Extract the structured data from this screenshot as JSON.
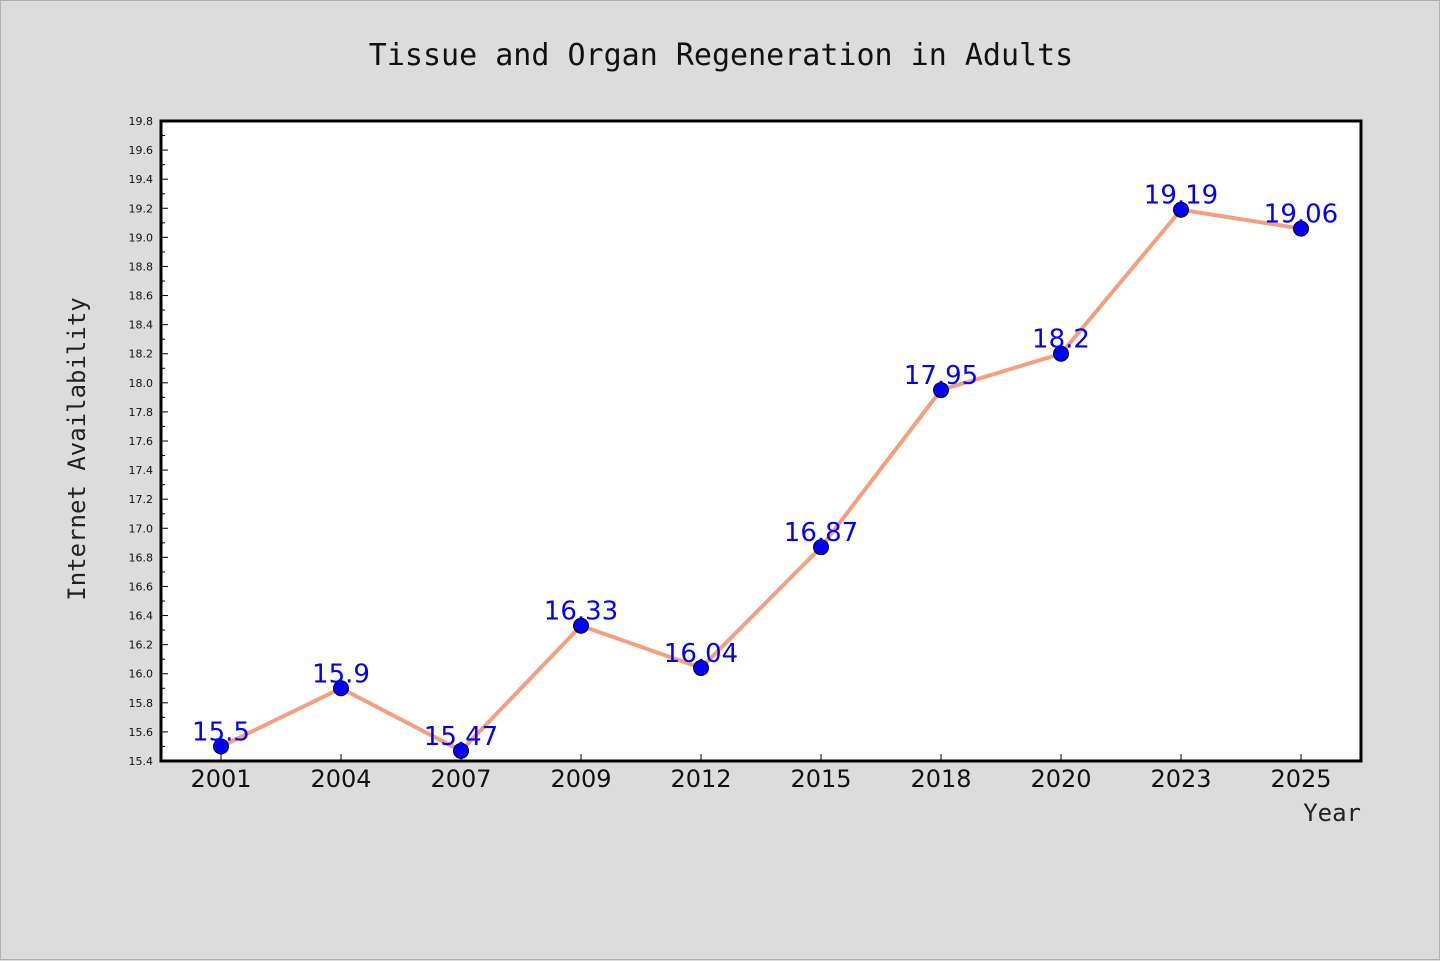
{
  "chart_data": {
    "type": "line",
    "title": "Tissue and Organ Regeneration in Adults",
    "xlabel": "Year",
    "ylabel": "Internet Availability",
    "categories": [
      "2001",
      "2004",
      "2007",
      "2009",
      "2012",
      "2015",
      "2018",
      "2020",
      "2023",
      "2025"
    ],
    "series": [
      {
        "values": [
          15.5,
          15.9,
          15.47,
          16.33,
          16.04,
          16.87,
          17.95,
          18.2,
          19.19,
          19.06
        ],
        "data_labels": [
          "15.5",
          "15.9",
          "15.47",
          "16.33",
          "16.04",
          "16.87",
          "17.95",
          "18.2",
          "19.19",
          "19.06"
        ]
      }
    ],
    "ylim": [
      15.4,
      19.8
    ],
    "yticks": [
      "15.4",
      "15.6",
      "15.8",
      "16.0",
      "16.2",
      "16.4",
      "16.6",
      "16.8",
      "17.0",
      "17.2",
      "17.4",
      "17.6",
      "17.8",
      "18.0",
      "18.2",
      "18.4",
      "18.6",
      "18.8",
      "19.0",
      "19.2",
      "19.4",
      "19.6",
      "19.8"
    ],
    "grid": false,
    "legend": "none",
    "colors": {
      "line": "#f4a07e",
      "marker": "#0000ff",
      "data_label": "#0000ff",
      "plot_background": "#ffffff",
      "figure_background": "#dcdcdc"
    }
  }
}
